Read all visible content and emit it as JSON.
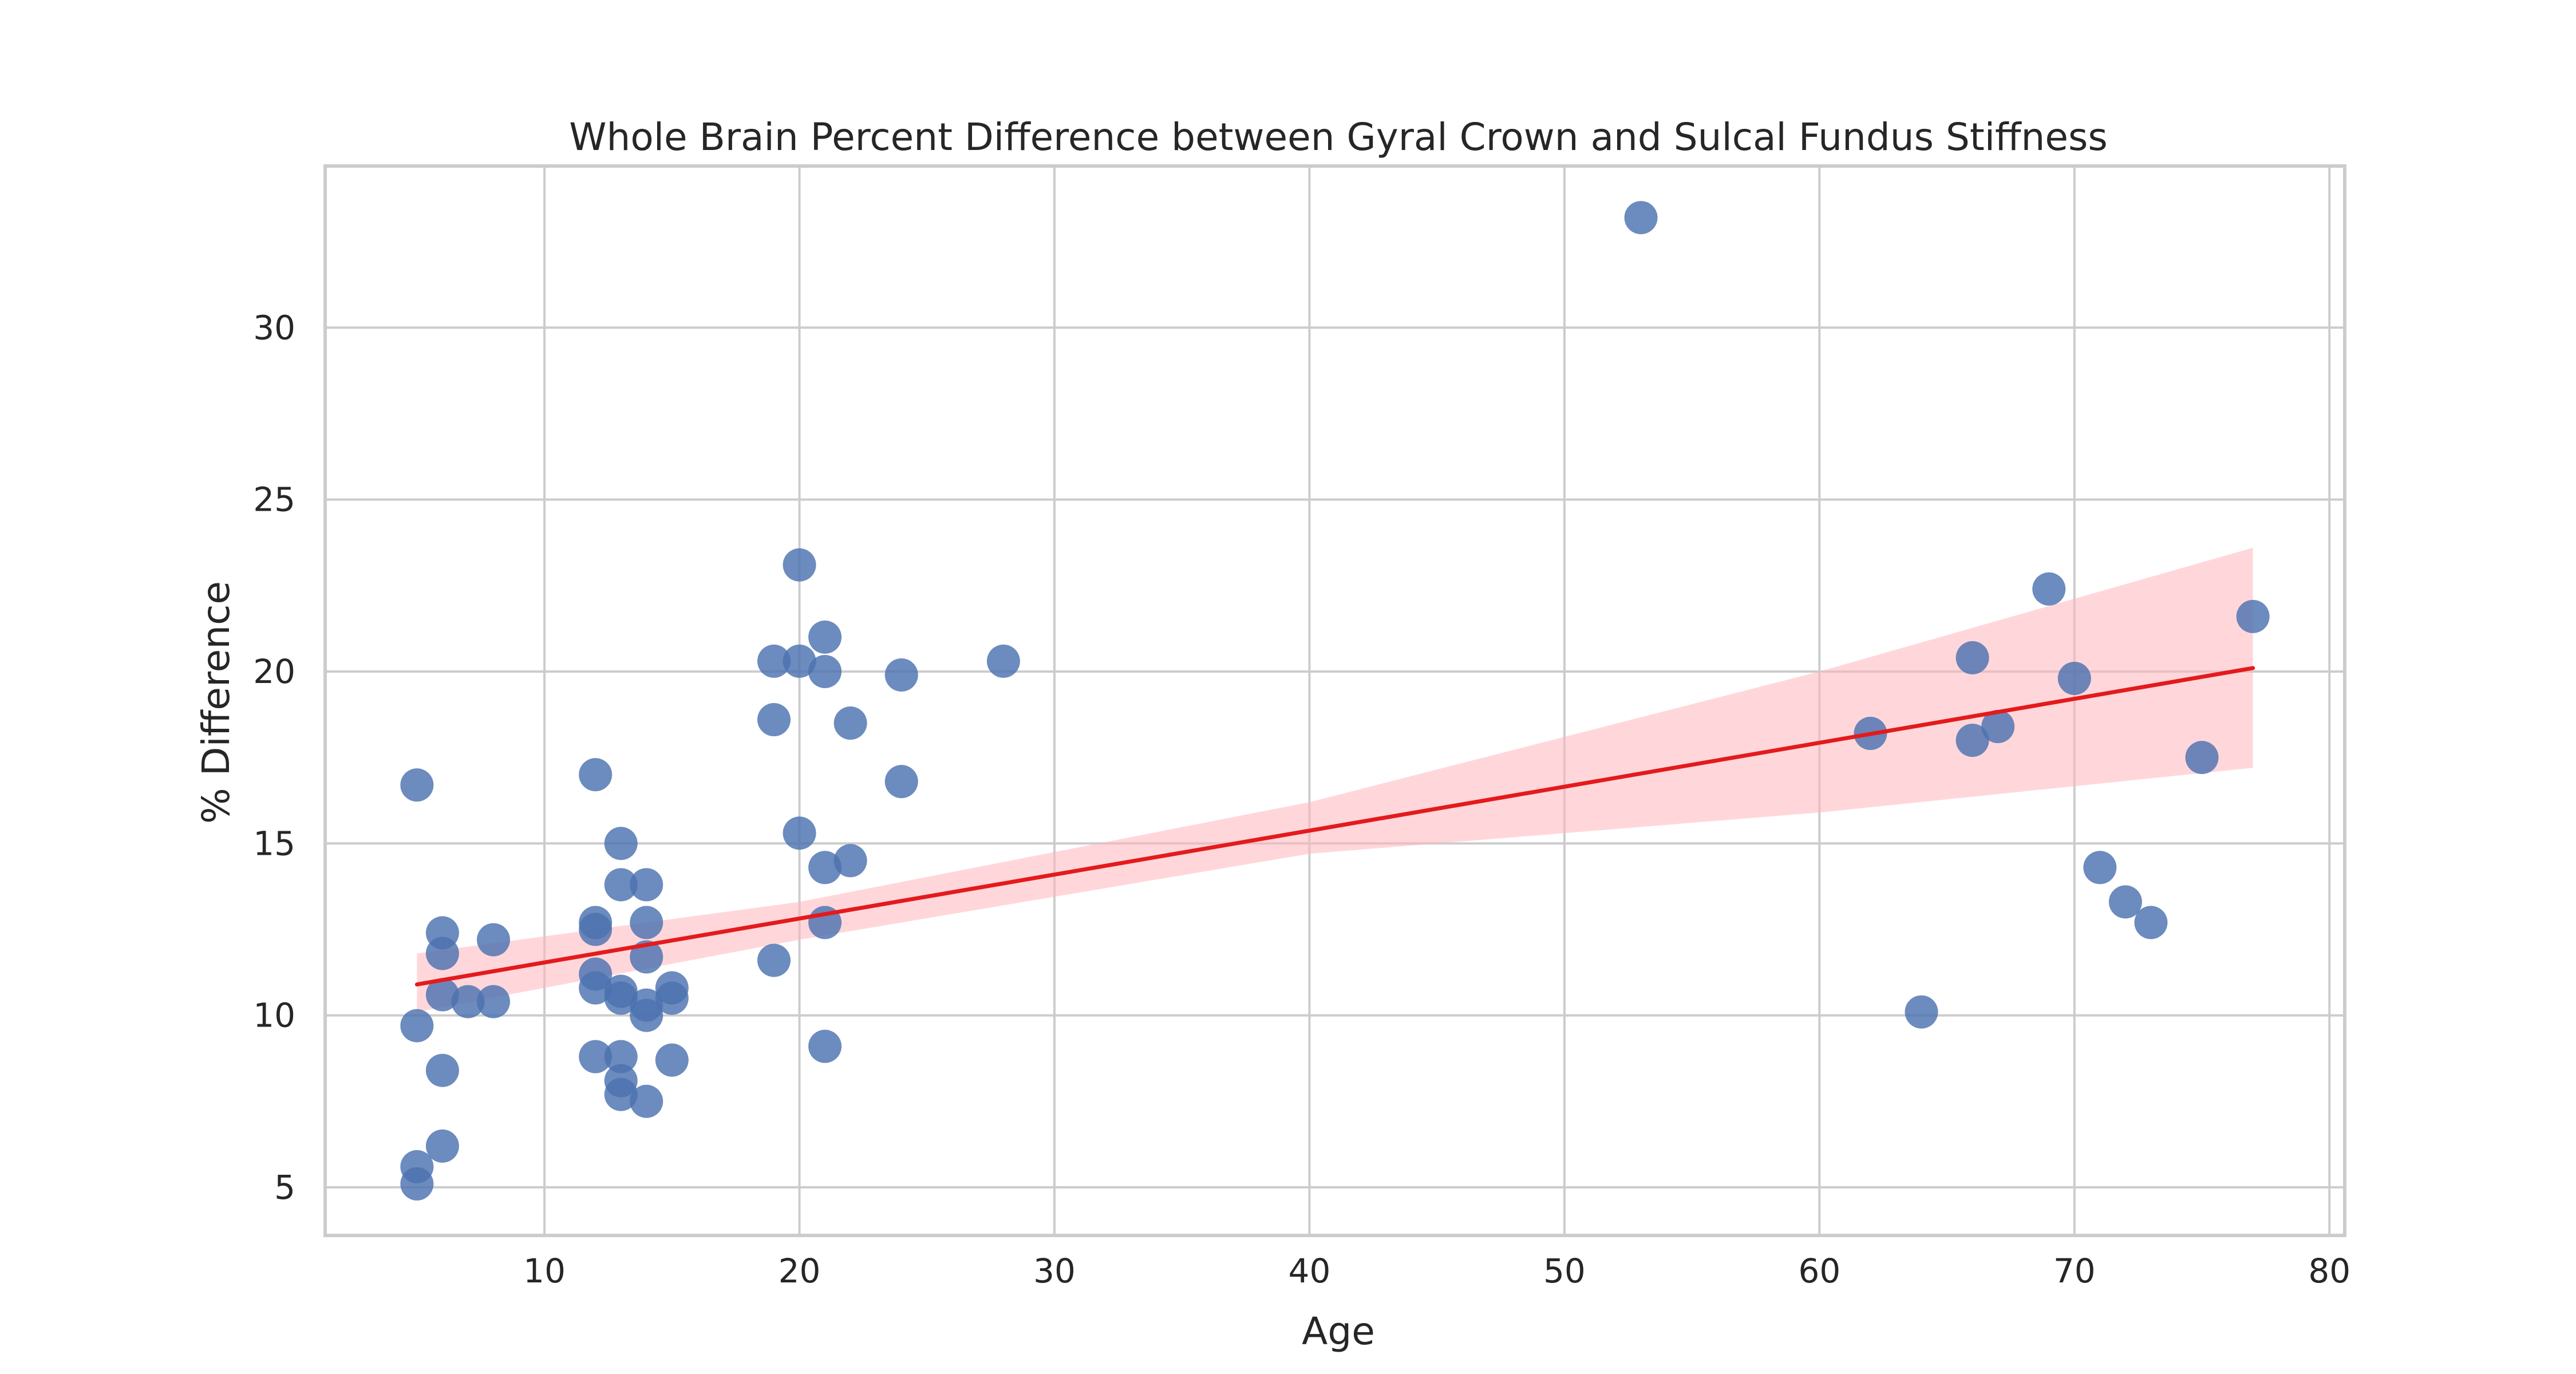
{
  "chart_data": {
    "type": "scatter",
    "title": "Whole Brain Percent Difference between Gyral Crown and Sulcal Fundus Stiffness",
    "xlabel": "Age",
    "ylabel": "% Difference",
    "xlim": [
      1.4,
      80.6
    ],
    "ylim": [
      3.6,
      34.7
    ],
    "xticks": [
      10,
      20,
      30,
      40,
      50,
      60,
      70,
      80
    ],
    "yticks": [
      5,
      10,
      15,
      20,
      25,
      30
    ],
    "grid": true,
    "legend": "none",
    "colors": {
      "points": "#4c72b0",
      "fit_line": "#e41a1c",
      "confidence_band": "#ffb6bb"
    },
    "points": [
      {
        "x": 5,
        "y": 16.7
      },
      {
        "x": 5,
        "y": 9.7
      },
      {
        "x": 5,
        "y": 5.6
      },
      {
        "x": 5,
        "y": 5.1
      },
      {
        "x": 6,
        "y": 12.4
      },
      {
        "x": 6,
        "y": 11.8
      },
      {
        "x": 6,
        "y": 10.6
      },
      {
        "x": 6,
        "y": 8.4
      },
      {
        "x": 6,
        "y": 6.2
      },
      {
        "x": 7,
        "y": 10.4
      },
      {
        "x": 8,
        "y": 12.2
      },
      {
        "x": 8,
        "y": 10.4
      },
      {
        "x": 12,
        "y": 17.0
      },
      {
        "x": 12,
        "y": 12.7
      },
      {
        "x": 12,
        "y": 12.5
      },
      {
        "x": 12,
        "y": 11.2
      },
      {
        "x": 12,
        "y": 10.8
      },
      {
        "x": 12,
        "y": 8.8
      },
      {
        "x": 13,
        "y": 15.0
      },
      {
        "x": 13,
        "y": 13.8
      },
      {
        "x": 13,
        "y": 10.7
      },
      {
        "x": 13,
        "y": 10.5
      },
      {
        "x": 13,
        "y": 8.8
      },
      {
        "x": 13,
        "y": 8.1
      },
      {
        "x": 13,
        "y": 7.7
      },
      {
        "x": 14,
        "y": 13.8
      },
      {
        "x": 14,
        "y": 12.7
      },
      {
        "x": 14,
        "y": 11.7
      },
      {
        "x": 14,
        "y": 10.3
      },
      {
        "x": 14,
        "y": 10.0
      },
      {
        "x": 14,
        "y": 7.5
      },
      {
        "x": 15,
        "y": 10.8
      },
      {
        "x": 15,
        "y": 10.5
      },
      {
        "x": 15,
        "y": 8.7
      },
      {
        "x": 19,
        "y": 20.3
      },
      {
        "x": 19,
        "y": 18.6
      },
      {
        "x": 19,
        "y": 11.6
      },
      {
        "x": 20,
        "y": 23.1
      },
      {
        "x": 20,
        "y": 20.3
      },
      {
        "x": 20,
        "y": 15.3
      },
      {
        "x": 21,
        "y": 21.0
      },
      {
        "x": 21,
        "y": 20.0
      },
      {
        "x": 21,
        "y": 14.3
      },
      {
        "x": 21,
        "y": 12.7
      },
      {
        "x": 21,
        "y": 9.1
      },
      {
        "x": 22,
        "y": 18.5
      },
      {
        "x": 22,
        "y": 14.5
      },
      {
        "x": 24,
        "y": 19.9
      },
      {
        "x": 24,
        "y": 16.8
      },
      {
        "x": 28,
        "y": 20.3
      },
      {
        "x": 53,
        "y": 33.2
      },
      {
        "x": 62,
        "y": 18.2
      },
      {
        "x": 64,
        "y": 10.1
      },
      {
        "x": 66,
        "y": 20.4
      },
      {
        "x": 66,
        "y": 18.0
      },
      {
        "x": 67,
        "y": 18.4
      },
      {
        "x": 69,
        "y": 22.4
      },
      {
        "x": 70,
        "y": 19.8
      },
      {
        "x": 71,
        "y": 14.3
      },
      {
        "x": 72,
        "y": 13.3
      },
      {
        "x": 73,
        "y": 12.7
      },
      {
        "x": 75,
        "y": 17.5
      },
      {
        "x": 77,
        "y": 21.6
      }
    ],
    "fit_line": [
      {
        "x": 5,
        "y": 10.9
      },
      {
        "x": 77,
        "y": 20.1
      }
    ],
    "confidence_band": {
      "upper": [
        {
          "x": 5,
          "y": 11.8
        },
        {
          "x": 20,
          "y": 13.3
        },
        {
          "x": 40,
          "y": 16.2
        },
        {
          "x": 60,
          "y": 20.0
        },
        {
          "x": 77,
          "y": 23.6
        }
      ],
      "lower": [
        {
          "x": 5,
          "y": 10.1
        },
        {
          "x": 20,
          "y": 12.2
        },
        {
          "x": 40,
          "y": 14.7
        },
        {
          "x": 60,
          "y": 15.9
        },
        {
          "x": 77,
          "y": 17.2
        }
      ]
    }
  }
}
